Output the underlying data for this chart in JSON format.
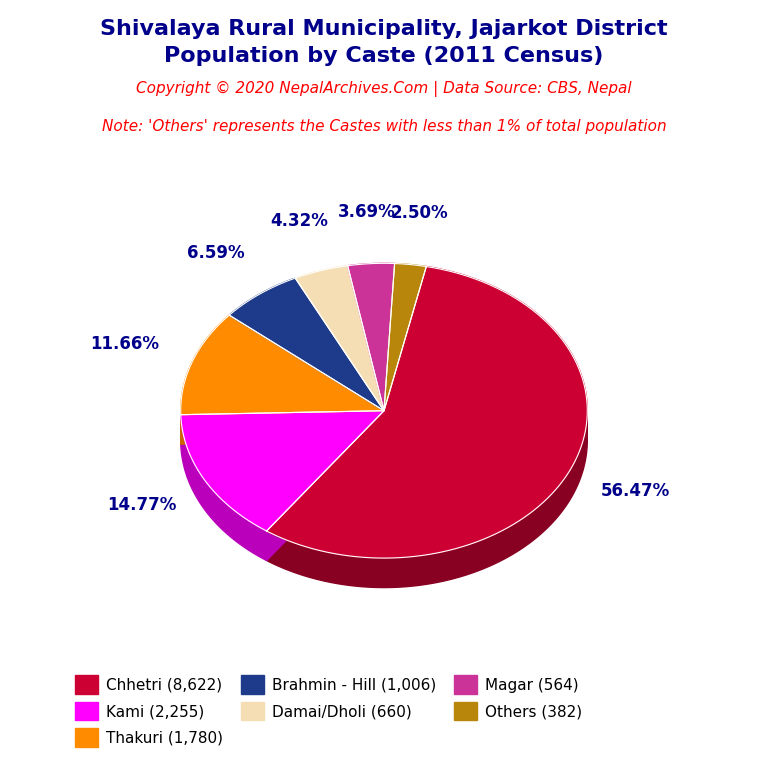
{
  "title_line1": "Shivalaya Rural Municipality, Jajarkot District",
  "title_line2": "Population by Caste (2011 Census)",
  "title_color": "#00008B",
  "copyright_text": "Copyright © 2020 NepalArchives.Com | Data Source: CBS, Nepal",
  "note_text": "Note: 'Others' represents the Castes with less than 1% of total population",
  "subtitle_color": "#FF0000",
  "background_color": "#FFFFFF",
  "labels": [
    "Chhetri",
    "Kami",
    "Thakuri",
    "Brahmin - Hill",
    "Damai/Dholi",
    "Magar",
    "Others"
  ],
  "values": [
    8622,
    2255,
    1780,
    1006,
    660,
    564,
    382
  ],
  "percentages": [
    56.47,
    14.77,
    11.66,
    6.59,
    4.32,
    3.69,
    2.5
  ],
  "colors": [
    "#CC0033",
    "#FF00FF",
    "#FF8C00",
    "#1E3A8A",
    "#F5DEB3",
    "#CC3399",
    "#B8860B"
  ],
  "dark_colors": [
    "#880022",
    "#BB00BB",
    "#CC6600",
    "#0D1F5C",
    "#C8B08A",
    "#882266",
    "#8B6914"
  ],
  "legend_labels": [
    "Chhetri (8,622)",
    "Kami (2,255)",
    "Thakuri (1,780)",
    "Brahmin - Hill (1,006)",
    "Damai/Dholi (660)",
    "Magar (564)",
    "Others (382)"
  ],
  "label_color": "#00008B",
  "label_fontsize": 12,
  "title_fontsize": 16,
  "copyright_fontsize": 11,
  "note_fontsize": 11,
  "legend_fontsize": 11
}
